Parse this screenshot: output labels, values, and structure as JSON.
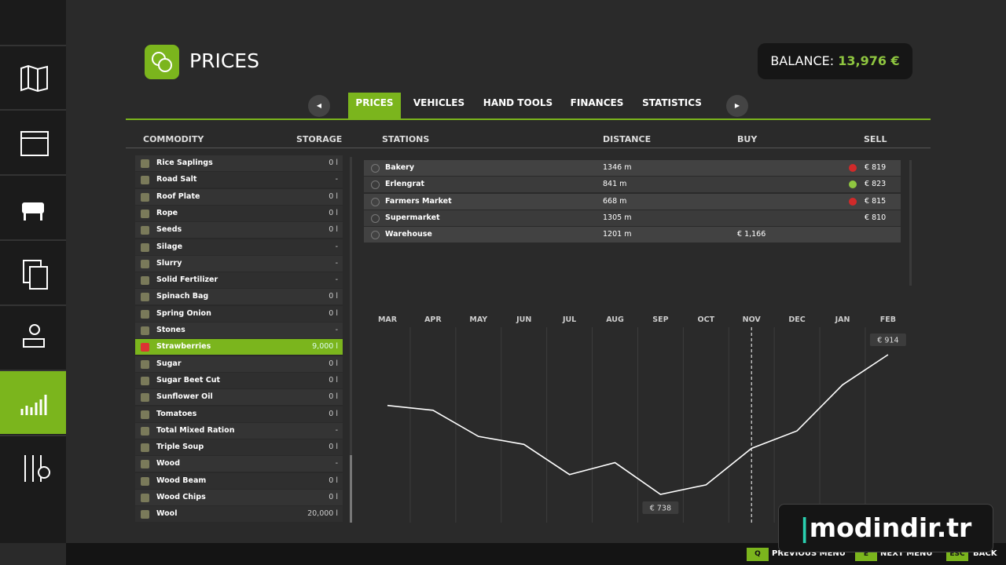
{
  "header": {
    "title": "PRICES",
    "balance_label": "BALANCE:",
    "balance_value": "13,976 €"
  },
  "tabs": [
    "PRICES",
    "VEHICLES",
    "HAND TOOLS",
    "FINANCES",
    "STATISTICS"
  ],
  "columns": {
    "commodity": "COMMODITY",
    "storage": "STORAGE",
    "stations": "STATIONS",
    "distance": "DISTANCE",
    "buy": "BUY",
    "sell": "SELL"
  },
  "commodities": [
    [
      "Rice Saplings",
      "0 l"
    ],
    [
      "Road Salt",
      "-"
    ],
    [
      "Roof Plate",
      "0 l"
    ],
    [
      "Rope",
      "0 l"
    ],
    [
      "Seeds",
      "0 l"
    ],
    [
      "Silage",
      "-"
    ],
    [
      "Slurry",
      "-"
    ],
    [
      "Solid Fertilizer",
      "-"
    ],
    [
      "Spinach Bag",
      "0 l"
    ],
    [
      "Spring Onion",
      "0 l"
    ],
    [
      "Stones",
      "-"
    ],
    [
      "Strawberries",
      "9,000 l"
    ],
    [
      "Sugar",
      "0 l"
    ],
    [
      "Sugar Beet Cut",
      "0 l"
    ],
    [
      "Sunflower Oil",
      "0 l"
    ],
    [
      "Tomatoes",
      "0 l"
    ],
    [
      "Total Mixed Ration",
      "-"
    ],
    [
      "Triple Soup",
      "0 l"
    ],
    [
      "Wood",
      "-"
    ],
    [
      "Wood Beam",
      "0 l"
    ],
    [
      "Wood Chips",
      "0 l"
    ],
    [
      "Wool",
      "20,000 l"
    ]
  ],
  "selected_commodity": 11,
  "stations": [
    {
      "name": "Bakery",
      "distance": "1346 m",
      "buy": null,
      "sell": "€ 819",
      "trend": "down"
    },
    {
      "name": "Erlengrat",
      "distance": "841 m",
      "buy": null,
      "sell": "€ 823",
      "trend": "up"
    },
    {
      "name": "Farmers Market",
      "distance": "668 m",
      "buy": null,
      "sell": "€ 815",
      "trend": "down"
    },
    {
      "name": "Supermarket",
      "distance": "1305 m",
      "buy": null,
      "sell": "€ 810",
      "trend": null
    },
    {
      "name": "Warehouse",
      "distance": "1201 m",
      "buy": "€ 1,166",
      "sell": null,
      "trend": null
    }
  ],
  "chart_data": {
    "type": "line",
    "categories": [
      "MAR",
      "APR",
      "MAY",
      "JUN",
      "JUL",
      "AUG",
      "SEP",
      "OCT",
      "NOV",
      "DEC",
      "JAN",
      "FEB"
    ],
    "values": [
      850,
      844,
      811,
      801,
      763,
      778,
      738,
      750,
      796,
      818,
      876,
      914
    ],
    "value_labels": [
      null,
      null,
      null,
      null,
      null,
      null,
      "€ 738",
      null,
      null,
      null,
      null,
      "€ 914"
    ],
    "color": "#ffffff",
    "current_index": 8
  },
  "footer": [
    {
      "key": "Q",
      "label": "PREVIOUS MENU"
    },
    {
      "key": "E",
      "label": "NEXT MENU"
    },
    {
      "key": "ESC",
      "label": "BACK"
    }
  ],
  "watermark": "modindir.tr"
}
